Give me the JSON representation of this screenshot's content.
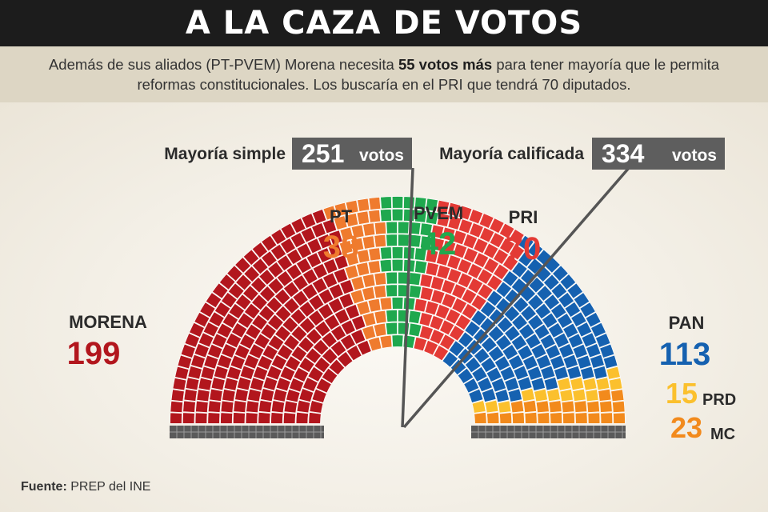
{
  "header": {
    "title": "A LA CAZA DE VOTOS",
    "subtitle_before": "Además de sus aliados (PT-PVEM) Morena necesita ",
    "subtitle_bold": "55 votos más",
    "subtitle_after": " para tener mayoría que le permita reformas constitucionales. Los buscaría en el PRI que tendrá 70 diputados."
  },
  "footer": {
    "source_label": "Fuente:",
    "source_text": " PREP del INE"
  },
  "chart_data": {
    "type": "parliament",
    "total_seats": 500,
    "series": [
      {
        "name": "MORENA",
        "value": 199,
        "color": "#b2161d"
      },
      {
        "name": "PT",
        "value": 38,
        "color": "#ef7b2e"
      },
      {
        "name": "PVEM",
        "value": 42,
        "color": "#1fa84e"
      },
      {
        "name": "PRI",
        "value": 70,
        "color": "#e33a35"
      },
      {
        "name": "PAN",
        "value": 113,
        "color": "#1561b0"
      },
      {
        "name": "PRD",
        "value": 15,
        "color": "#fbc02d"
      },
      {
        "name": "MC",
        "value": 23,
        "color": "#f28a1c"
      }
    ],
    "annotations": [
      {
        "label": "Mayoría simple",
        "value": "251",
        "unit": "votos",
        "seat": 251
      },
      {
        "label": "Mayoría calificada",
        "value": "334",
        "unit": "votos",
        "seat": 334
      }
    ]
  }
}
